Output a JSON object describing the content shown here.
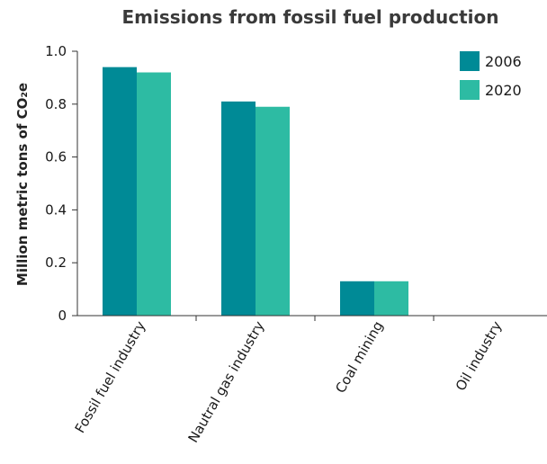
{
  "chart_data": {
    "type": "bar",
    "title": "Emissions from fossil fuel production",
    "xlabel": "",
    "ylabel": "Million metric tons of CO₂e",
    "ylim": [
      0,
      1.0
    ],
    "yticks": [
      0,
      0.2,
      0.4,
      0.6,
      0.8,
      1.0
    ],
    "ytick_labels": [
      "0",
      "0.2",
      "0.4",
      "0.6",
      "0.8",
      "1.0"
    ],
    "categories": [
      "Fossil fuel industry",
      "Nautral gas industry",
      "Coal mining",
      "Oil industry"
    ],
    "series": [
      {
        "name": "2006",
        "color": "#008a96",
        "values": [
          0.94,
          0.81,
          0.13,
          0
        ]
      },
      {
        "name": "2020",
        "color": "#2dbba3",
        "values": [
          0.92,
          0.79,
          0.13,
          0
        ]
      }
    ],
    "grid": false,
    "legend_position": "top-right"
  }
}
